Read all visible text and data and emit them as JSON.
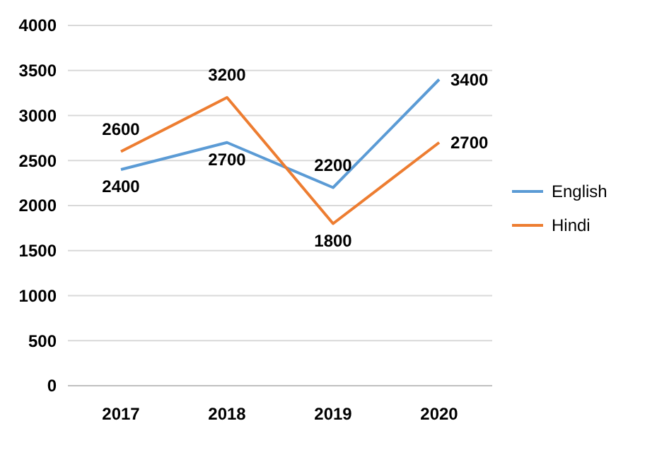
{
  "chart_data": {
    "type": "line",
    "categories": [
      "2017",
      "2018",
      "2019",
      "2020"
    ],
    "series": [
      {
        "name": "English",
        "color": "#5b9bd5",
        "values": [
          2400,
          2700,
          2200,
          3400
        ]
      },
      {
        "name": "Hindi",
        "color": "#ed7d31",
        "values": [
          2600,
          3200,
          1800,
          2700
        ]
      }
    ],
    "ylim": [
      0,
      4000
    ],
    "yticks": [
      0,
      500,
      1000,
      1500,
      2000,
      2500,
      3000,
      3500,
      4000
    ],
    "grid": "y",
    "legend": "right",
    "data_labels": true,
    "marker": "none",
    "line_style": "solid"
  }
}
